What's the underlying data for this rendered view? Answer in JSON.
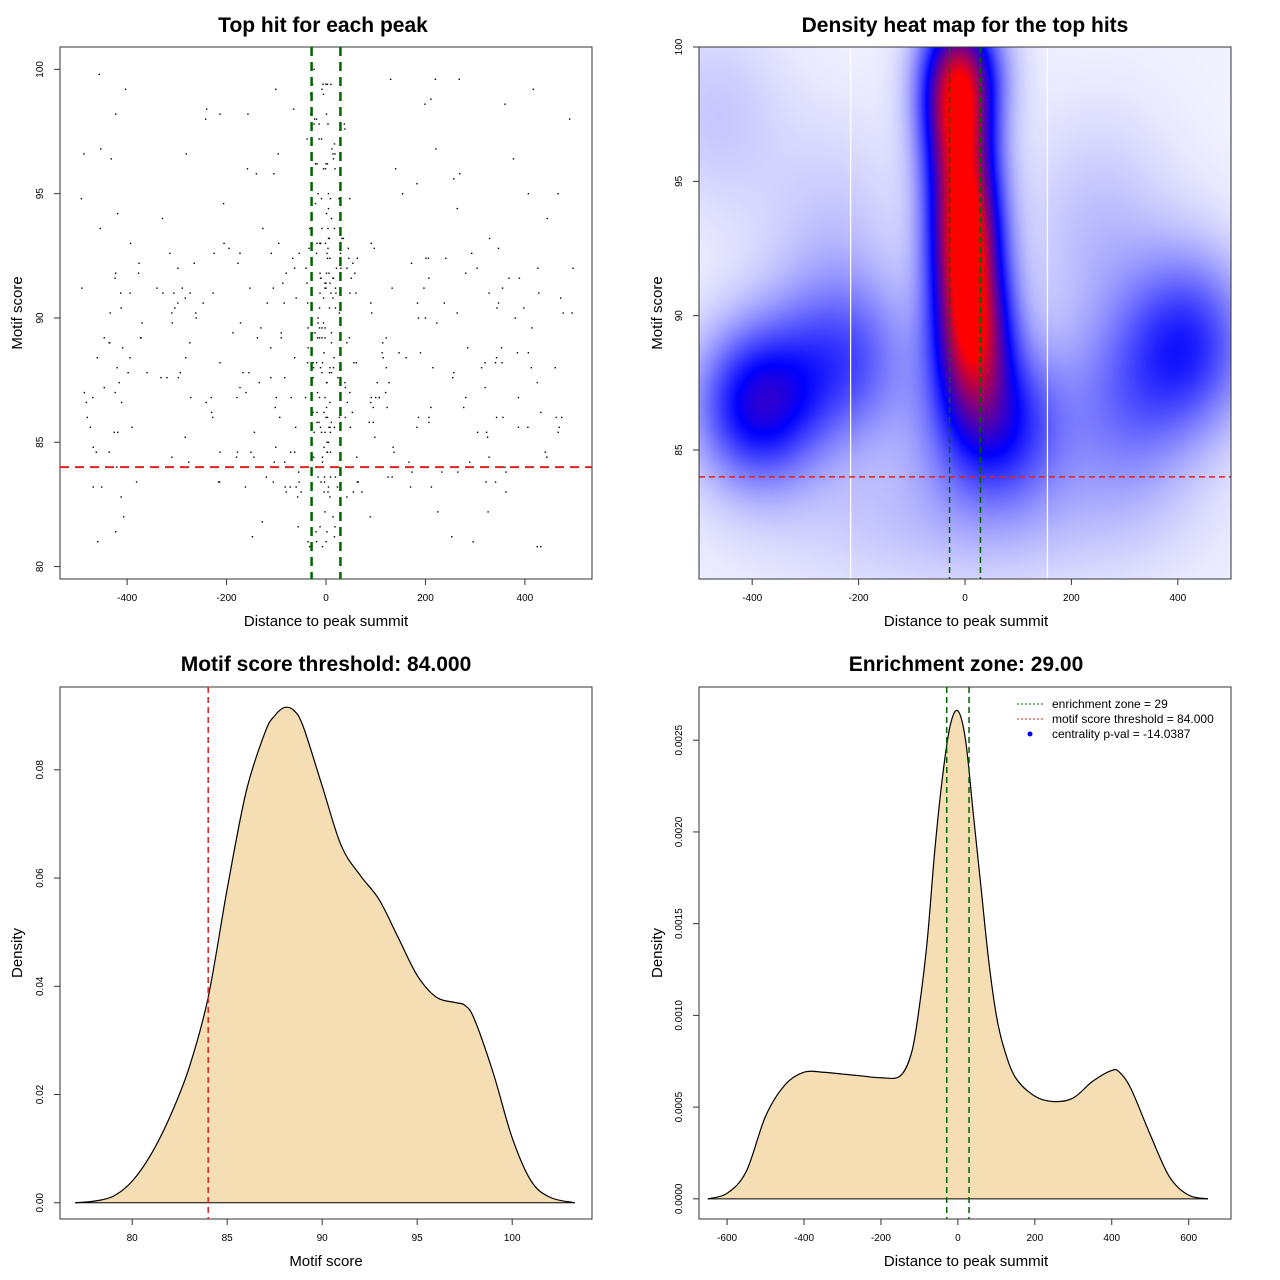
{
  "colors": {
    "threshold": "#dd2222",
    "zone": "#006400",
    "density_fill": "#f5deb3",
    "heat_low": "#ffffff",
    "heat_mid": "#0000ff",
    "heat_high": "#ff0000",
    "centrality": "#0000ff"
  },
  "chart_data": [
    {
      "id": "scatter",
      "type": "scatter",
      "title": "Top hit for each peak",
      "xlabel": "Distance to peak summit",
      "ylabel": "Motif score",
      "xlim": [
        -535,
        535
      ],
      "ylim": [
        79.5,
        100.9
      ],
      "xticks": [
        -400,
        -200,
        0,
        200,
        400
      ],
      "xtick_labels": [
        "-400",
        "-200",
        "0",
        "200",
        "400"
      ],
      "yticks": [
        80,
        85,
        90,
        95,
        100
      ],
      "ytick_labels": [
        "80",
        "85",
        "90",
        "95",
        "100"
      ],
      "threshold": 84.0,
      "zone": [
        -29,
        29
      ],
      "point_count": 520,
      "points": []
    },
    {
      "id": "heatmap",
      "type": "heatmap",
      "title": "Density heat map for the top hits",
      "xlabel": "Distance to peak summit",
      "ylabel": "Motif score",
      "xlim": [
        -500,
        500
      ],
      "ylim": [
        80.2,
        100
      ],
      "xticks": [
        -400,
        -200,
        0,
        200,
        400
      ],
      "xtick_labels": [
        "-400",
        "-200",
        "0",
        "200",
        "400"
      ],
      "yticks": [
        85,
        90,
        95,
        100
      ],
      "ytick_labels": [
        "85",
        "90",
        "95",
        "100"
      ],
      "threshold": 84.0,
      "zone": [
        -29,
        29
      ],
      "white_lines": [
        -215,
        155
      ],
      "blobs": [
        {
          "x": -390,
          "y": 86.7,
          "sx": 80,
          "sy": 2.0,
          "w": 0.75
        },
        {
          "x": -230,
          "y": 88.3,
          "sx": 90,
          "sy": 2.2,
          "w": 0.45
        },
        {
          "x": -470,
          "y": 97.5,
          "sx": 90,
          "sy": 2.5,
          "w": 0.12
        },
        {
          "x": -15,
          "y": 97.5,
          "sx": 45,
          "sy": 2.2,
          "w": 1.15
        },
        {
          "x": 0,
          "y": 93.0,
          "sx": 45,
          "sy": 2.3,
          "w": 1.45
        },
        {
          "x": 15,
          "y": 89.2,
          "sx": 50,
          "sy": 2.0,
          "w": 1.05
        },
        {
          "x": 55,
          "y": 86.0,
          "sx": 85,
          "sy": 2.0,
          "w": 0.65
        },
        {
          "x": -5,
          "y": 99.2,
          "sx": 55,
          "sy": 1.6,
          "w": 0.5
        },
        {
          "x": 420,
          "y": 89.0,
          "sx": 85,
          "sy": 2.3,
          "w": 0.55
        },
        {
          "x": 300,
          "y": 86.5,
          "sx": 90,
          "sy": 2.5,
          "w": 0.3
        },
        {
          "x": 250,
          "y": 93.0,
          "sx": 100,
          "sy": 3.0,
          "w": 0.15
        },
        {
          "x": -250,
          "y": 93.0,
          "sx": 100,
          "sy": 3.0,
          "w": 0.12
        },
        {
          "x": 0,
          "y": 82.5,
          "sx": 250,
          "sy": 2.0,
          "w": 0.15
        }
      ]
    },
    {
      "id": "score_density",
      "type": "area",
      "title": "Motif score threshold: 84.000",
      "xlabel": "Motif score",
      "ylabel": "Density",
      "xlim": [
        76.2,
        104.2
      ],
      "ylim": [
        -0.003,
        0.0953
      ],
      "xticks": [
        80,
        85,
        90,
        95,
        100
      ],
      "xtick_labels": [
        "80",
        "85",
        "90",
        "95",
        "100"
      ],
      "yticks": [
        0.0,
        0.02,
        0.04,
        0.06,
        0.08
      ],
      "ytick_labels": [
        "0.00",
        "0.02",
        "0.04",
        "0.06",
        "0.08"
      ],
      "threshold": 84.0,
      "x": [
        77.0,
        78.0,
        79.0,
        80.0,
        81.0,
        82.0,
        83.0,
        84.0,
        85.0,
        86.0,
        87.0,
        87.5,
        88.0,
        88.5,
        89.0,
        90.0,
        91.0,
        92.0,
        93.0,
        94.0,
        95.0,
        96.0,
        97.0,
        97.5,
        98.0,
        99.0,
        100.0,
        101.0,
        102.0,
        103.3
      ],
      "y": [
        0.0,
        0.0003,
        0.0012,
        0.004,
        0.009,
        0.016,
        0.025,
        0.038,
        0.058,
        0.076,
        0.087,
        0.09,
        0.0915,
        0.091,
        0.088,
        0.077,
        0.066,
        0.0605,
        0.056,
        0.049,
        0.042,
        0.038,
        0.037,
        0.0365,
        0.034,
        0.024,
        0.012,
        0.004,
        0.001,
        0.0
      ]
    },
    {
      "id": "distance_density",
      "type": "area",
      "title": "Enrichment zone: 29.00",
      "xlabel": "Distance to peak summit",
      "ylabel": "Density",
      "xlim": [
        -673,
        710
      ],
      "ylim": [
        -0.00011,
        0.00279
      ],
      "xticks": [
        -600,
        -400,
        -200,
        0,
        200,
        400,
        600
      ],
      "xtick_labels": [
        "-600",
        "-400",
        "-200",
        "0",
        "200",
        "400",
        "600"
      ],
      "yticks": [
        0.0,
        0.0005,
        0.001,
        0.0015,
        0.002,
        0.0025
      ],
      "ytick_labels": [
        "0.0000",
        "0.0005",
        "0.0010",
        "0.0015",
        "0.0020",
        "0.0025"
      ],
      "zone": [
        -29,
        29
      ],
      "x": [
        -650,
        -600,
        -550,
        -500,
        -450,
        -400,
        -350,
        -300,
        -250,
        -200,
        -150,
        -120,
        -100,
        -80,
        -60,
        -40,
        -20,
        0,
        20,
        40,
        60,
        80,
        100,
        120,
        150,
        200,
        250,
        300,
        350,
        400,
        420,
        450,
        500,
        550,
        600,
        650
      ],
      "y": [
        0.0,
        3e-05,
        0.00015,
        0.00045,
        0.00062,
        0.00069,
        0.00069,
        0.00068,
        0.00067,
        0.00066,
        0.00067,
        0.0008,
        0.00105,
        0.0014,
        0.0019,
        0.0023,
        0.00258,
        0.00266,
        0.0025,
        0.0021,
        0.0017,
        0.0013,
        0.001,
        0.00082,
        0.00066,
        0.00056,
        0.00053,
        0.00055,
        0.00064,
        0.0007,
        0.00069,
        0.0006,
        0.00035,
        0.00012,
        2e-05,
        0.0
      ],
      "legend": [
        {
          "label": "enrichment zone = 29",
          "symbol": "dotted-line",
          "color": "#006400"
        },
        {
          "label": "motif score threshold = 84.000",
          "symbol": "dotted-line",
          "color": "#dd2222"
        },
        {
          "label": "centrality p-val = -14.0387",
          "symbol": "dot",
          "color": "#0000ff"
        }
      ],
      "legend_position": "top-right"
    }
  ]
}
